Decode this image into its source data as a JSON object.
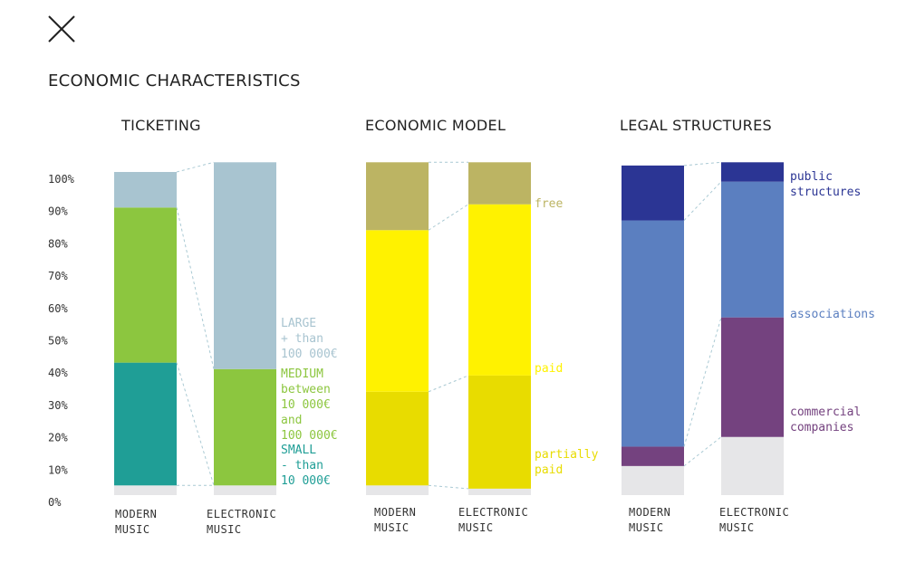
{
  "page": {
    "title": "ECONOMIC CHARACTERISTICS",
    "close_icon": "close-icon"
  },
  "colors": {
    "ticketing_large": "#a8c4d0",
    "ticketing_medium": "#8cc63f",
    "ticketing_small": "#1f9e96",
    "model_free": "#bcb463",
    "model_paid": "#fff200",
    "model_partially_paid": "#e8dc00",
    "legal_public": "#2b3594",
    "legal_associations": "#5b7fc0",
    "legal_commercial": "#74427f",
    "residual": "#e6e6e8"
  },
  "y_axis": {
    "ticks": [
      "100%",
      "90%",
      "80%",
      "70%",
      "60%",
      "50%",
      "40%",
      "30%",
      "20%",
      "10%",
      "0%"
    ]
  },
  "chart_data": [
    {
      "type": "bar",
      "stacked": true,
      "title": "TICKETING",
      "categories": [
        [
          "MODERN",
          "MUSIC"
        ],
        [
          "ELECTRONIC",
          "MUSIC"
        ]
      ],
      "ylim": [
        0,
        100
      ],
      "series": [
        {
          "key": "residual",
          "values": [
            3,
            3
          ]
        },
        {
          "key": "small",
          "values": [
            38,
            0
          ]
        },
        {
          "key": "medium",
          "values": [
            48,
            36
          ]
        },
        {
          "key": "large",
          "values": [
            11,
            64
          ]
        }
      ],
      "labels": [
        {
          "key": "large",
          "color_key": "ticketing_large",
          "lines": [
            "LARGE",
            "+ than",
            "100 000€"
          ]
        },
        {
          "key": "medium",
          "color_key": "ticketing_medium",
          "lines": [
            "MEDIUM",
            "between",
            "10 000€",
            "and",
            "100 000€"
          ]
        },
        {
          "key": "small",
          "color_key": "ticketing_small",
          "lines": [
            "SMALL",
            "- than",
            "10 000€"
          ]
        }
      ]
    },
    {
      "type": "bar",
      "stacked": true,
      "title": "ECONOMIC MODEL",
      "categories": [
        [
          "MODERN",
          "MUSIC"
        ],
        [
          "ELECTRONIC",
          "MUSIC"
        ]
      ],
      "ylim": [
        0,
        100
      ],
      "series": [
        {
          "key": "residual",
          "values": [
            3,
            2
          ]
        },
        {
          "key": "partially_paid",
          "values": [
            29,
            35
          ]
        },
        {
          "key": "paid",
          "values": [
            50,
            53
          ]
        },
        {
          "key": "free",
          "values": [
            21,
            13
          ]
        }
      ],
      "labels": [
        {
          "key": "free",
          "color_key": "model_free",
          "lines": [
            "free"
          ]
        },
        {
          "key": "paid",
          "color_key": "model_paid",
          "lines": [
            "paid"
          ]
        },
        {
          "key": "partially_paid",
          "color_key": "model_partially_paid",
          "lines": [
            "partially",
            "paid"
          ]
        }
      ]
    },
    {
      "type": "bar",
      "stacked": true,
      "title": "LEGAL STRUCTURES",
      "categories": [
        [
          "MODERN",
          "MUSIC"
        ],
        [
          "ELECTRONIC",
          "MUSIC"
        ]
      ],
      "ylim": [
        0,
        100
      ],
      "series": [
        {
          "key": "residual",
          "values": [
            9,
            18
          ]
        },
        {
          "key": "commercial",
          "values": [
            6,
            37
          ]
        },
        {
          "key": "associations",
          "values": [
            70,
            42
          ]
        },
        {
          "key": "public",
          "values": [
            17,
            6
          ]
        }
      ],
      "labels": [
        {
          "key": "public",
          "color_key": "legal_public",
          "lines": [
            "public",
            "structures"
          ]
        },
        {
          "key": "associations",
          "color_key": "legal_associations",
          "lines": [
            "associations"
          ]
        },
        {
          "key": "commercial",
          "color_key": "legal_commercial",
          "lines": [
            "commercial",
            "companies"
          ]
        }
      ]
    }
  ]
}
